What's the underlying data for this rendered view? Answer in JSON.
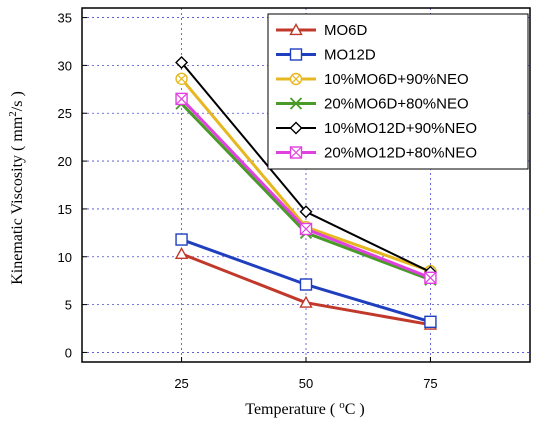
{
  "chart_data": {
    "type": "line",
    "x": [
      25,
      50,
      75
    ],
    "xlim": [
      5,
      95
    ],
    "ylim": [
      -1,
      36
    ],
    "xticks": [
      25,
      50,
      75
    ],
    "yticks": [
      0,
      5,
      10,
      15,
      20,
      25,
      30,
      35
    ],
    "xlabel": "Temperature ( °C )",
    "ylabel": "Kinematic Viscosity ( mm²/s )",
    "grid": true,
    "legend_position": "top-right",
    "series": [
      {
        "name": "MO6D",
        "values": [
          10.3,
          5.2,
          2.9
        ],
        "color": "#c0392b",
        "marker": "triangle",
        "line_width": 3
      },
      {
        "name": "MO12D",
        "values": [
          11.8,
          7.1,
          3.2
        ],
        "color": "#1f3fbf",
        "marker": "square",
        "line_width": 3
      },
      {
        "name": "10%MO6D+90%NEO",
        "values": [
          28.6,
          13.1,
          8.5
        ],
        "color": "#e6b820",
        "marker": "circle-cross",
        "line_width": 3
      },
      {
        "name": "20%MO6D+80%NEO",
        "values": [
          26.0,
          12.5,
          7.6
        ],
        "color": "#4a9a2a",
        "marker": "x",
        "line_width": 3
      },
      {
        "name": "10%MO12D+90%NEO",
        "values": [
          30.3,
          14.7,
          8.4
        ],
        "color": "#000000",
        "marker": "diamond",
        "line_width": 2
      },
      {
        "name": "20%MO12D+80%NEO",
        "values": [
          26.5,
          12.9,
          7.8
        ],
        "color": "#e040e0",
        "marker": "square-x",
        "line_width": 3
      }
    ]
  }
}
